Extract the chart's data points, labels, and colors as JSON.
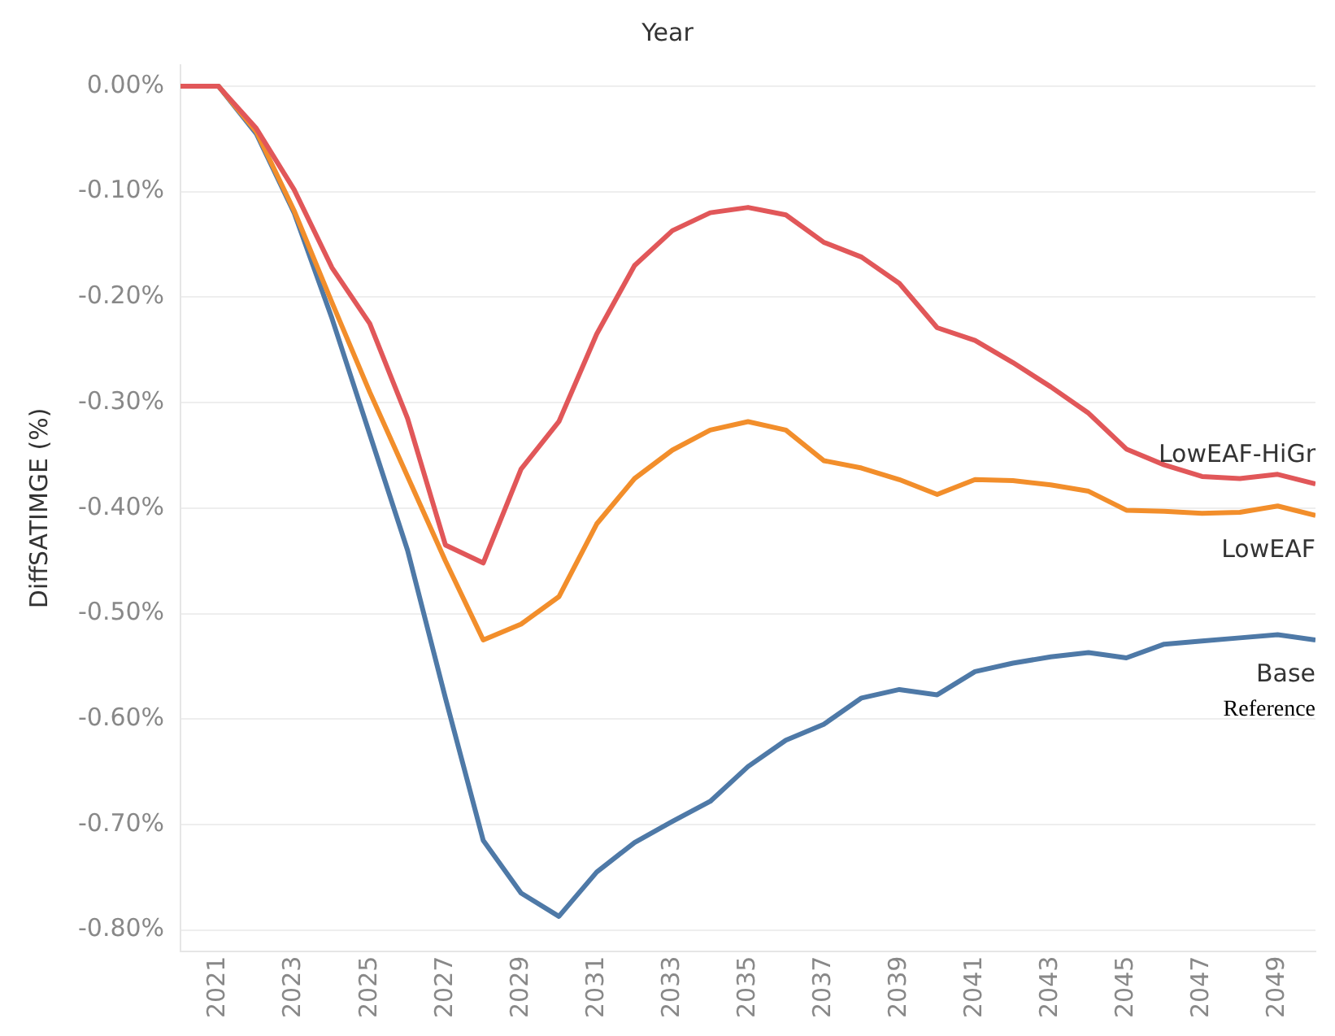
{
  "chart_data": {
    "type": "line",
    "xlabel": "Year",
    "ylabel": "DiffSATIMGE (%)",
    "x": [
      2020,
      2021,
      2022,
      2023,
      2024,
      2025,
      2026,
      2027,
      2028,
      2029,
      2030,
      2031,
      2032,
      2033,
      2034,
      2035,
      2036,
      2037,
      2038,
      2039,
      2040,
      2041,
      2042,
      2043,
      2044,
      2045,
      2046,
      2047,
      2048,
      2049,
      2050
    ],
    "series": [
      {
        "name": "LowEAF-HiGr",
        "color": "#e15759",
        "values": [
          0,
          0,
          -0.04,
          -0.098,
          -0.172,
          -0.225,
          -0.315,
          -0.435,
          -0.452,
          -0.363,
          -0.318,
          -0.235,
          -0.17,
          -0.137,
          -0.12,
          -0.115,
          -0.122,
          -0.148,
          -0.162,
          -0.187,
          -0.229,
          -0.241,
          -0.262,
          -0.285,
          -0.31,
          -0.344,
          -0.359,
          -0.37,
          -0.372,
          -0.368,
          -0.377
        ]
      },
      {
        "name": "LowEAF",
        "color": "#f28e2b",
        "values": [
          0,
          0,
          -0.043,
          -0.118,
          -0.205,
          -0.29,
          -0.37,
          -0.45,
          -0.525,
          -0.51,
          -0.484,
          -0.415,
          -0.372,
          -0.345,
          -0.326,
          -0.318,
          -0.326,
          -0.355,
          -0.362,
          -0.373,
          -0.387,
          -0.373,
          -0.374,
          -0.378,
          -0.384,
          -0.402,
          -0.403,
          -0.405,
          -0.404,
          -0.398,
          -0.407
        ]
      },
      {
        "name": "Base",
        "color": "#4e79a7",
        "values": [
          0,
          0,
          -0.045,
          -0.12,
          -0.22,
          -0.33,
          -0.44,
          -0.58,
          -0.715,
          -0.765,
          -0.787,
          -0.745,
          -0.717,
          -0.697,
          -0.678,
          -0.645,
          -0.62,
          -0.605,
          -0.58,
          -0.572,
          -0.577,
          -0.555,
          -0.547,
          -0.541,
          -0.537,
          -0.542,
          -0.529,
          -0.526,
          -0.523,
          -0.52,
          -0.525
        ]
      }
    ],
    "xlim": [
      2020,
      2050
    ],
    "xticks": [
      2021,
      2023,
      2025,
      2027,
      2029,
      2031,
      2033,
      2035,
      2037,
      2039,
      2041,
      2043,
      2045,
      2047,
      2049
    ],
    "ylim": [
      -0.82,
      0.02
    ],
    "yticks": [
      {
        "value": 0,
        "label": "0.00%"
      },
      {
        "value": -0.1,
        "label": "-0.10%"
      },
      {
        "value": -0.2,
        "label": "-0.20%"
      },
      {
        "value": -0.3,
        "label": "-0.30%"
      },
      {
        "value": -0.4,
        "label": "-0.40%"
      },
      {
        "value": -0.5,
        "label": "-0.50%"
      },
      {
        "value": -0.6,
        "label": "-0.60%"
      },
      {
        "value": -0.7,
        "label": "-0.70%"
      },
      {
        "value": -0.8,
        "label": "-0.80%"
      }
    ],
    "grid": "y",
    "legend": false,
    "marker": "none",
    "line_style": "solid",
    "annotations": [
      "Reference"
    ]
  }
}
